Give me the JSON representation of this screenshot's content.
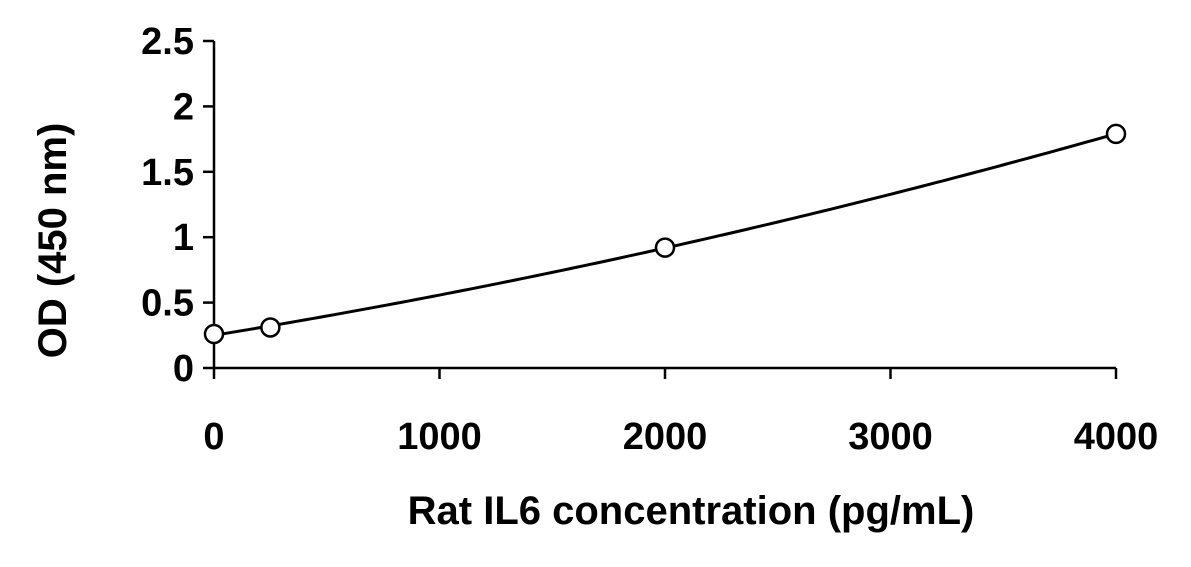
{
  "chart_data": {
    "type": "scatter",
    "title": "",
    "xlabel": "Rat IL6 concentration (pg/mL)",
    "ylabel": "OD (450 nm)",
    "xlim": [
      0,
      4000
    ],
    "ylim": [
      0,
      2.5
    ],
    "x_ticks": [
      0,
      1000,
      2000,
      3000,
      4000
    ],
    "x_tick_labels": [
      "0",
      "1000",
      "2000",
      "3000",
      "4000"
    ],
    "y_ticks": [
      0,
      0.5,
      1,
      1.5,
      2,
      2.5
    ],
    "y_tick_labels": [
      "0",
      "0.5",
      "1",
      "1.5",
      "2",
      "2.5"
    ],
    "grid": false,
    "legend": "none",
    "marker": "open-circle",
    "line": "smooth-fit",
    "colors": {
      "line": "#000000",
      "marker_stroke": "#000000",
      "marker_fill": "#ffffff",
      "axis": "#000000"
    },
    "series": [
      {
        "points": [
          {
            "x": 0,
            "y": 0.26
          },
          {
            "x": 250,
            "y": 0.31
          },
          {
            "x": 2000,
            "y": 0.92
          },
          {
            "x": 4000,
            "y": 1.79
          }
        ]
      }
    ]
  }
}
